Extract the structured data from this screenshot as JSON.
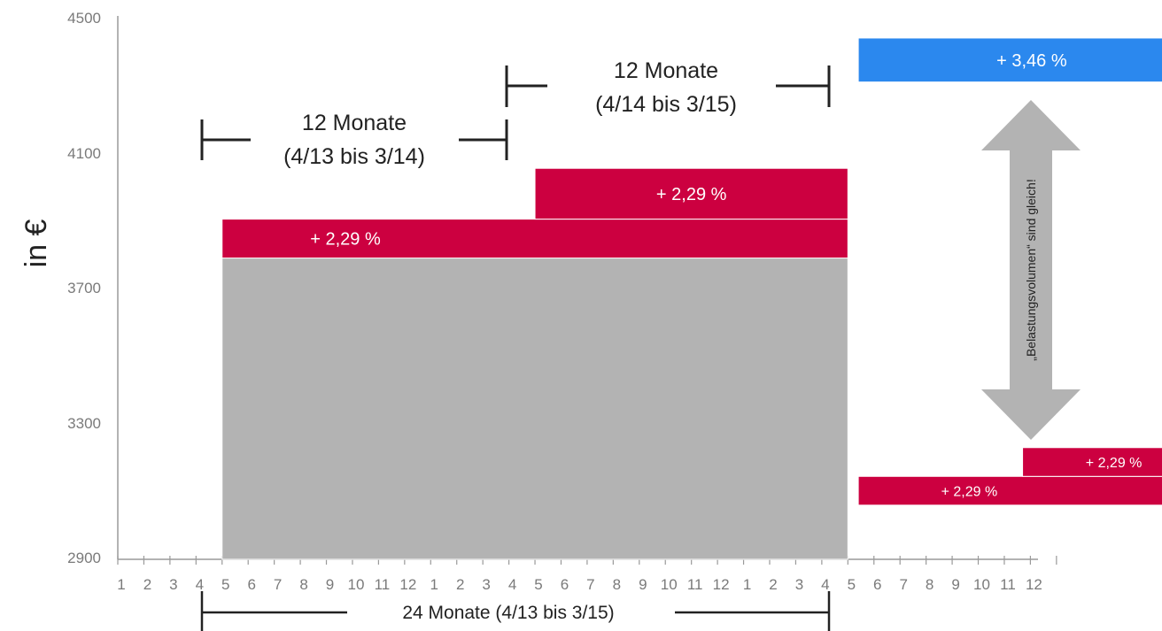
{
  "chart_data": {
    "type": "bar",
    "ylabel": "in €",
    "ylim": [
      2900,
      4500
    ],
    "y_ticks": [
      "2900",
      "3300",
      "3700",
      "4100",
      "4500"
    ],
    "x_tick_labels": [
      "1",
      "2",
      "3",
      "4",
      "5",
      "6",
      "7",
      "8",
      "9",
      "10",
      "11",
      "12",
      "1",
      "2",
      "3",
      "4",
      "5",
      "6",
      "7",
      "8",
      "9",
      "10",
      "11",
      "12",
      "1",
      "2",
      "3",
      "4",
      "5",
      "6",
      "7",
      "8",
      "9",
      "10",
      "11",
      "12"
    ],
    "colors": {
      "base": "#b3b3b3",
      "increase": "#cc0040",
      "alternative": "#2b88ee",
      "arrow": "#b3b3b3"
    },
    "bars": [
      {
        "name": "Basis",
        "from_month": 4,
        "to_month": 28,
        "y0": 2900,
        "y1": 3790,
        "color": "base",
        "label": ""
      },
      {
        "name": "Erhöhung 1",
        "from_month": 4,
        "to_month": 28,
        "y0": 3790,
        "y1": 3905,
        "color": "increase",
        "label": "+ 2,29 %"
      },
      {
        "name": "Erhöhung 2",
        "from_month": 16,
        "to_month": 28,
        "y0": 3905,
        "y1": 4055,
        "color": "increase",
        "label": "+ 2,29 %"
      },
      {
        "name": "Alternativ",
        "from_month": 28.4,
        "to_month": 41.7,
        "y0": 4310,
        "y1": 4440,
        "color": "alternative",
        "label": "+ 3,46 %"
      },
      {
        "name": "Klein 1",
        "from_month": 28.4,
        "to_month": 41.7,
        "y0": 3060,
        "y1": 3145,
        "color": "increase",
        "label": "+ 2,29 %"
      },
      {
        "name": "Klein 2",
        "from_month": 34.7,
        "to_month": 41.7,
        "y0": 3145,
        "y1": 3230,
        "color": "increase",
        "label": "+ 2,29 %"
      }
    ],
    "spans": [
      {
        "line1": "12 Monate",
        "line2": "(4/13 bis 3/14)",
        "from_month": 4,
        "to_month": 16,
        "y": 4150
      },
      {
        "line1": "12 Monate",
        "line2": "(4/14 bis 3/15)",
        "from_month": 16,
        "to_month": 28,
        "y": 4290
      }
    ],
    "bottom_span": {
      "text": "24 Monate (4/13 bis 3/15)",
      "from_month": 4,
      "to_month": 28
    },
    "arrow": {
      "text": "„Belastungsvolumen“ sind gleich!",
      "month": 32,
      "y_top": 4250,
      "y_bottom": 3250
    }
  }
}
